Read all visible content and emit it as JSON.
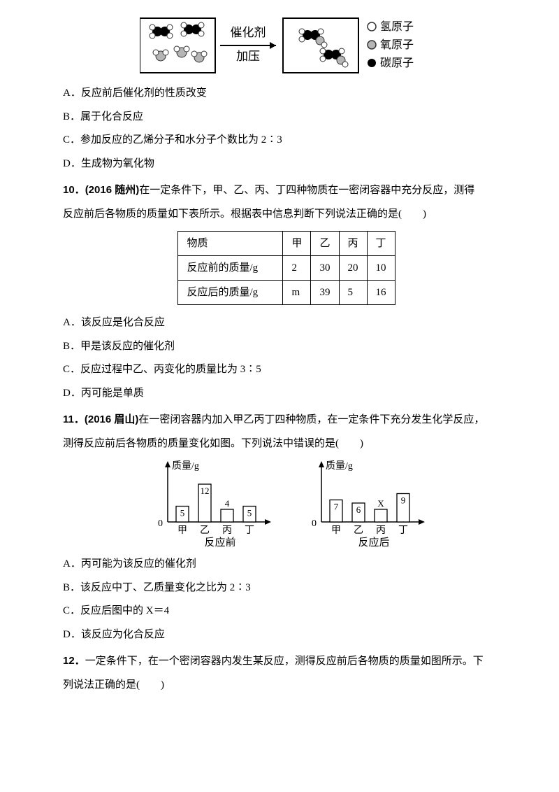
{
  "reaction_diagram": {
    "arrow_top": "催化剂",
    "arrow_bottom": "加压",
    "legend": [
      {
        "symbol": "open",
        "label": "氢原子",
        "fill": "#ffffff",
        "stroke": "#333333"
      },
      {
        "symbol": "gray",
        "label": "氧原子",
        "fill": "#b5b5b5",
        "stroke": "#333333"
      },
      {
        "symbol": "black",
        "label": "碳原子",
        "fill": "#000000",
        "stroke": "#000000"
      }
    ]
  },
  "q9opts": {
    "a": "A．反应前后催化剂的性质改变",
    "b": "B．属于化合反应",
    "c": "C．参加反应的乙烯分子和水分子个数比为 2∶3",
    "d": "D．生成物为氧化物"
  },
  "q10": {
    "num": "10．",
    "src": "(2016 随州)",
    "stem1": "在一定条件下，甲、乙、丙、丁四种物质在一密闭容器中充分反应，测得",
    "stem2": "反应前后各物质的质量如下表所示。根据表中信息判断下列说法正确的是(　　)",
    "table": {
      "header": [
        "物质",
        "甲",
        "乙",
        "丙",
        "丁"
      ],
      "row1": [
        "反应前的质量/g",
        "2",
        "30",
        "20",
        "10"
      ],
      "row2": [
        "反应后的质量/g",
        "m",
        "39",
        "5",
        "16"
      ]
    },
    "opts": {
      "a": "A．该反应是化合反应",
      "b": "B．甲是该反应的催化剂",
      "c": "C．反应过程中乙、丙变化的质量比为 3∶5",
      "d": "D．丙可能是单质"
    }
  },
  "q11": {
    "num": "11．",
    "src": "(2016 眉山)",
    "stem1": "在一密闭容器内加入甲乙丙丁四种物质，在一定条件下充分发生化学反应，",
    "stem2": "测得反应前后各物质的质量变化如图。下列说法中错误的是(　　)",
    "chart_before": {
      "ylabel": "质量/g",
      "xlabel": "反应前",
      "cats": [
        "甲",
        "乙",
        "丙",
        "丁"
      ],
      "vals": [
        5,
        12,
        4,
        5
      ]
    },
    "chart_after": {
      "ylabel": "质量/g",
      "xlabel": "反应后",
      "cats": [
        "甲",
        "乙",
        "丙",
        "丁"
      ],
      "vals": [
        7,
        6,
        "X",
        9
      ],
      "heights": [
        7,
        6,
        4,
        9
      ]
    },
    "opts": {
      "a": "A．丙可能为该反应的催化剂",
      "b": "B．该反应中丁、乙质量变化之比为 2∶3",
      "c": "C．反应后图中的 X＝4",
      "d": "D．该反应为化合反应"
    }
  },
  "q12": {
    "num": "12．",
    "stem1": "一定条件下，在一个密闭容器内发生某反应，测得反应前后各物质的质量如图所示。下",
    "stem2": "列说法正确的是(　　)"
  },
  "style": {
    "box_stroke": "#000",
    "arrow_stroke": "#000",
    "bar_fill": "#ffffff",
    "bar_stroke": "#000",
    "axis_stroke": "#000",
    "font": "SimSun"
  }
}
